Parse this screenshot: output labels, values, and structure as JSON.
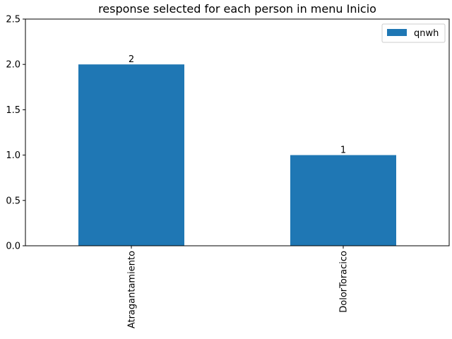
{
  "chart_data": {
    "type": "bar",
    "title": "response selected for each person in menu Inicio",
    "categories": [
      "Atragantamiento",
      "DolorToracico"
    ],
    "series": [
      {
        "name": "qnwh",
        "color": "#1f77b4",
        "values": [
          2,
          1
        ]
      }
    ],
    "ylim": [
      0,
      2.5
    ],
    "yticks": [
      {
        "value": 0,
        "label": "0.0"
      },
      0.5,
      {
        "value": 1,
        "label": "1.0"
      },
      1.5,
      {
        "value": 2,
        "label": "2.0"
      },
      2.5
    ],
    "legend": "upper right"
  }
}
